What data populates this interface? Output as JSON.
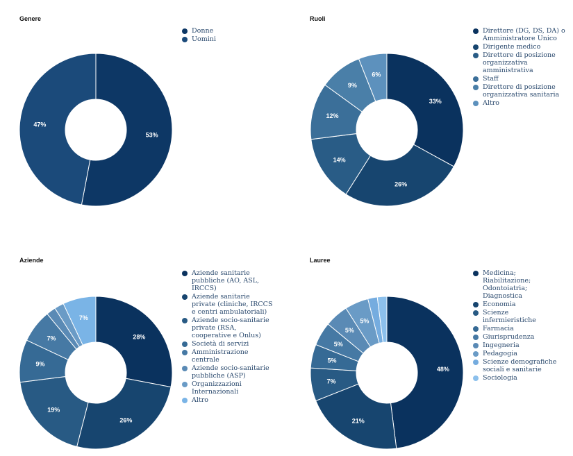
{
  "chart_data": [
    {
      "type": "pie",
      "title": "Genere",
      "categories": [
        "Donne",
        "Uomini"
      ],
      "values": [
        53,
        47
      ],
      "labels": [
        "53%",
        "47%"
      ],
      "colors": [
        "#0d3765",
        "#1b4a7a"
      ],
      "legend_position": "right"
    },
    {
      "type": "pie",
      "title": "Ruoli",
      "categories": [
        "Direttore (DG, DS, DA) o\nAmministratore Unico",
        "Dirigente medico",
        "Direttore di posizione\norganizzativa\namministrativa",
        "Staff",
        "Direttore di posizione\norganizzativa sanitaria",
        "Altro"
      ],
      "values": [
        33,
        26,
        14,
        12,
        9,
        6
      ],
      "labels": [
        "33%",
        "26%",
        "14%",
        "12%",
        "9%",
        "6%"
      ],
      "colors": [
        "#0a325e",
        "#17456f",
        "#295c86",
        "#3b6f99",
        "#4a7fa8",
        "#5d91bd"
      ],
      "legend_position": "right"
    },
    {
      "type": "pie",
      "title": "Aziende",
      "categories": [
        "Aziende sanitarie\npubbliche (AO, ASL,\nIRCCS)",
        "Aziende sanitarie\nprivate (cliniche, IRCCS\ne centri ambulatoriali)",
        "Aziende socio-sanitarie\nprivate (RSA,\ncooperative e Onlus)",
        "Società di servizi",
        "Amministrazione\ncentrale",
        "Aziende socio-sanitarie\npubbliche (ASP)",
        "Organizzazioni\nInternazionali",
        "Altro"
      ],
      "values": [
        28,
        26,
        19,
        9,
        7,
        2,
        2,
        7
      ],
      "labels": [
        "28%",
        "26%",
        "19%",
        "9%",
        "7%",
        "",
        "",
        "7%"
      ],
      "colors": [
        "#0a325e",
        "#17456f",
        "#285a84",
        "#366a95",
        "#4679a4",
        "#5a8ab5",
        "#6a9bc6",
        "#7ab4e6"
      ],
      "legend_position": "right"
    },
    {
      "type": "pie",
      "title": "Lauree",
      "categories": [
        "Medicina;\nRiabilitazione;\nOdontoiatria;\nDiagnostica",
        "Economia",
        "Scienze\ninfermieristiche",
        "Farmacia",
        "Giurisprudenza",
        "Ingegneria",
        "Pedagogia",
        "Scienze demografiche\nsociali e sanitarie",
        "Sociologia"
      ],
      "values": [
        48,
        21,
        7,
        5,
        5,
        5,
        5,
        2,
        2
      ],
      "labels": [
        "48%",
        "21%",
        "7%",
        "5%",
        "5%",
        "5%",
        "5%",
        "",
        ""
      ],
      "colors": [
        "#0a325e",
        "#17456f",
        "#285a84",
        "#366a95",
        "#4679a4",
        "#5a8ab5",
        "#6a9bc6",
        "#75acdf",
        "#8cc0ec"
      ],
      "legend_position": "right"
    }
  ]
}
